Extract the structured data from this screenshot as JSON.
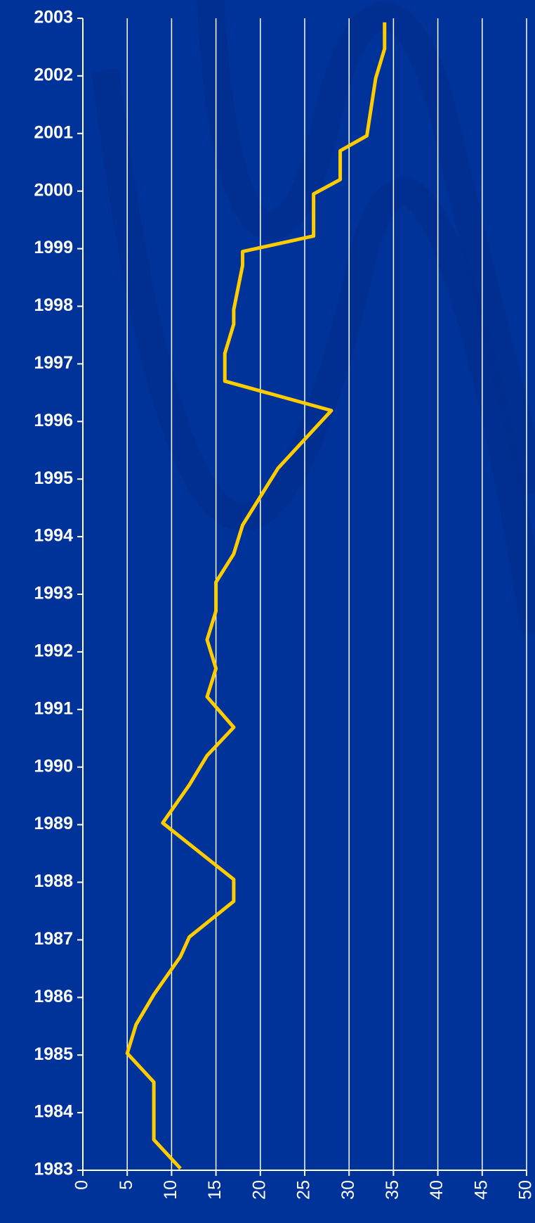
{
  "chart_data": {
    "type": "line",
    "orientation": "vertical",
    "x": [
      2002.93,
      2002.47,
      2001.96,
      2000.96,
      2000.7,
      2000.2,
      1999.95,
      1999.22,
      1998.95,
      1998.71,
      1997.94,
      1997.69,
      1997.18,
      1996.7,
      1996.19,
      1995.19,
      1994.2,
      1993.7,
      1993.21,
      1992.71,
      1992.21,
      1991.71,
      1991.22,
      1990.69,
      1990.2,
      1989.69,
      1989.03,
      1988.05,
      1987.67,
      1987.05,
      1986.71,
      1986.05,
      1985.53,
      1985.03,
      1984.53,
      1983.53,
      1983.03
    ],
    "series": [
      {
        "color": "#ffcc00",
        "values": [
          34,
          34,
          33,
          32,
          29,
          29,
          26,
          26,
          18,
          18,
          17,
          17,
          16,
          16,
          28,
          22,
          18,
          17,
          15,
          15,
          14,
          15,
          14,
          17,
          14,
          12,
          9,
          17,
          17,
          12,
          11,
          8,
          6,
          5,
          8,
          8,
          11
        ]
      }
    ],
    "xlim": [
      1983,
      2003
    ],
    "xticks": [
      1983,
      1984,
      1985,
      1986,
      1987,
      1988,
      1989,
      1990,
      1991,
      1992,
      1993,
      1994,
      1995,
      1996,
      1997,
      1998,
      1999,
      2000,
      2001,
      2002,
      2003
    ],
    "ylim": [
      0,
      50
    ],
    "yticks": [
      0,
      5,
      10,
      15,
      20,
      25,
      30,
      35,
      40,
      45,
      50
    ],
    "grid": true
  }
}
